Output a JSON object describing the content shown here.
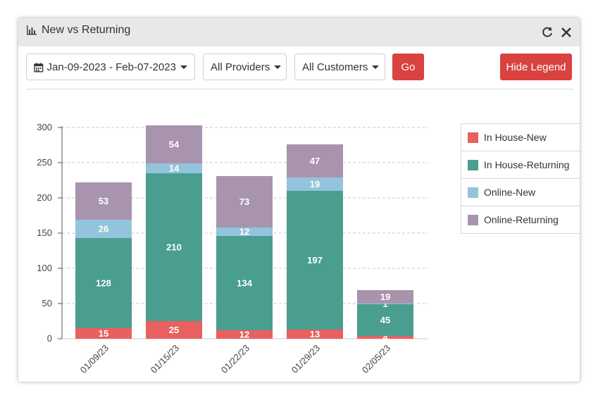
{
  "window": {
    "title": "New vs Returning",
    "title_icon": "bar-chart-icon",
    "refresh_icon": "refresh-icon",
    "close_icon": "close-icon"
  },
  "toolbar": {
    "date_range": "Jan-09-2023 - Feb-07-2023",
    "providers": "All Providers",
    "customers": "All Customers",
    "go_label": "Go",
    "hide_legend_label": "Hide Legend"
  },
  "chart_data": {
    "type": "bar",
    "stacked": true,
    "categories": [
      "01/09/23",
      "01/15/23",
      "01/22/23",
      "01/29/23",
      "02/05/23"
    ],
    "series": [
      {
        "name": "In House-New",
        "color": "#e8605f",
        "values": [
          15,
          25,
          12,
          13,
          4
        ]
      },
      {
        "name": "In House-Returning",
        "color": "#4a9e8f",
        "values": [
          128,
          210,
          134,
          197,
          45
        ]
      },
      {
        "name": "Online-New",
        "color": "#93c4dc",
        "values": [
          26,
          14,
          12,
          19,
          1
        ]
      },
      {
        "name": "Online-Returning",
        "color": "#a894ac",
        "values": [
          53,
          54,
          73,
          47,
          19
        ]
      }
    ],
    "ylim": [
      0,
      300
    ],
    "yticks": [
      0,
      50,
      100,
      150,
      200,
      250,
      300
    ],
    "grid": true,
    "legend_position": "right",
    "title": "",
    "xlabel": "",
    "ylabel": ""
  }
}
